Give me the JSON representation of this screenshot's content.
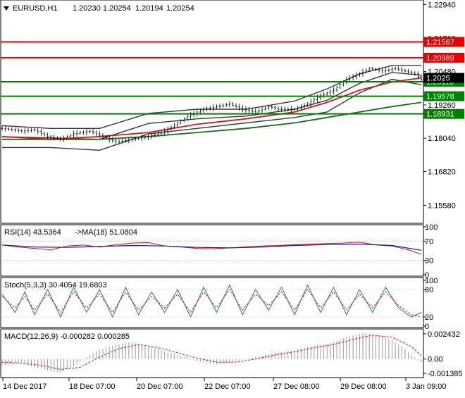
{
  "chart_data": {
    "type": "line",
    "symbol": "EURUSD,H1",
    "ohlc": {
      "open": "1.20230",
      "high": "1.20254",
      "low": "1.20194",
      "close": "1.20254"
    },
    "y_ticks": [
      "1.22940",
      "1.21700",
      "1.20480",
      "1.19260",
      "1.18040",
      "1.16820",
      "1.15580"
    ],
    "ylim": [
      1.15,
      1.23
    ],
    "x_ticks": [
      "14 Dec 2017",
      "18 Dec 07:00",
      "20 Dec 07:00",
      "22 Dec 07:00",
      "27 Dec 08:00",
      "29 Dec 08:00",
      "3 Jan 09:00"
    ],
    "current_price": {
      "value": 1.2025,
      "label": "1.2025"
    },
    "levels": [
      {
        "value": 1.21567,
        "label": "1.21567",
        "color": "#e60000"
      },
      {
        "value": 1.20989,
        "label": "1.20989",
        "color": "#e60000"
      },
      {
        "value": 1.2011,
        "label": "1.20110",
        "color": "#008000"
      },
      {
        "value": 1.19578,
        "label": "1.19578",
        "color": "#008000"
      },
      {
        "value": 1.18931,
        "label": "1.18931",
        "color": "#008000"
      }
    ],
    "price_path": [
      [
        0,
        1.184
      ],
      [
        6,
        1.183
      ],
      [
        10,
        1.1835
      ],
      [
        14,
        1.181
      ],
      [
        18,
        1.18
      ],
      [
        22,
        1.182
      ],
      [
        27,
        1.183
      ],
      [
        31,
        1.181
      ],
      [
        35,
        1.179
      ],
      [
        40,
        1.18
      ],
      [
        45,
        1.181
      ],
      [
        50,
        1.183
      ],
      [
        54,
        1.186
      ],
      [
        58,
        1.189
      ],
      [
        62,
        1.191
      ],
      [
        66,
        1.192
      ],
      [
        70,
        1.193
      ],
      [
        74,
        1.191
      ],
      [
        78,
        1.19
      ],
      [
        82,
        1.192
      ],
      [
        85,
        1.191
      ],
      [
        90,
        1.191
      ],
      [
        94,
        1.193
      ],
      [
        98,
        1.196
      ],
      [
        102,
        1.198
      ],
      [
        106,
        1.202
      ],
      [
        110,
        1.204
      ],
      [
        113,
        1.206
      ],
      [
        117,
        1.205
      ],
      [
        121,
        1.206
      ],
      [
        124,
        1.205
      ],
      [
        127,
        1.204
      ],
      [
        129,
        1.202
      ]
    ],
    "ma_fast": [
      [
        0,
        1.181
      ],
      [
        15,
        1.18
      ],
      [
        30,
        1.181
      ],
      [
        45,
        1.1825
      ],
      [
        60,
        1.1855
      ],
      [
        75,
        1.1875
      ],
      [
        90,
        1.19
      ],
      [
        100,
        1.1935
      ],
      [
        110,
        1.198
      ],
      [
        120,
        1.201
      ],
      [
        129,
        1.2025
      ]
    ],
    "ma_slow": [
      [
        0,
        1.18
      ],
      [
        15,
        1.18
      ],
      [
        30,
        1.18
      ],
      [
        45,
        1.181
      ],
      [
        60,
        1.1825
      ],
      [
        75,
        1.184
      ],
      [
        90,
        1.186
      ],
      [
        100,
        1.188
      ],
      [
        110,
        1.19
      ],
      [
        120,
        1.192
      ],
      [
        129,
        1.1935
      ]
    ],
    "bands": {
      "upper": [
        [
          0,
          1.185
        ],
        [
          15,
          1.184
        ],
        [
          30,
          1.184
        ],
        [
          45,
          1.1895
        ],
        [
          60,
          1.191
        ],
        [
          75,
          1.191
        ],
        [
          90,
          1.194
        ],
        [
          100,
          1.1985
        ],
        [
          110,
          1.204
        ],
        [
          120,
          1.207
        ],
        [
          129,
          1.207
        ]
      ],
      "lower": [
        [
          0,
          1.177
        ],
        [
          15,
          1.177
        ],
        [
          30,
          1.176
        ],
        [
          45,
          1.182
        ],
        [
          60,
          1.184
        ],
        [
          75,
          1.186
        ],
        [
          90,
          1.188
        ],
        [
          100,
          1.19
        ],
        [
          110,
          1.197
        ],
        [
          120,
          1.202
        ],
        [
          129,
          1.2
        ]
      ],
      "mid": [
        [
          0,
          1.181
        ],
        [
          15,
          1.1805
        ],
        [
          30,
          1.18
        ],
        [
          45,
          1.1858
        ],
        [
          60,
          1.1875
        ],
        [
          75,
          1.1885
        ],
        [
          90,
          1.191
        ],
        [
          100,
          1.1943
        ],
        [
          110,
          1.2005
        ],
        [
          120,
          1.2045
        ],
        [
          129,
          1.2035
        ]
      ]
    },
    "indicators": {
      "rsi": {
        "label": "RSI(14) 43.5364",
        "ma_label": "->MA(18) 51.0804",
        "ticks": [
          "100",
          "70",
          "30",
          "0"
        ],
        "ylim": [
          0,
          100
        ],
        "values": [
          [
            0,
            62
          ],
          [
            5,
            58
          ],
          [
            10,
            55
          ],
          [
            15,
            52
          ],
          [
            20,
            60
          ],
          [
            25,
            62
          ],
          [
            30,
            58
          ],
          [
            35,
            63
          ],
          [
            40,
            66
          ],
          [
            45,
            67
          ],
          [
            50,
            60
          ],
          [
            55,
            58
          ],
          [
            60,
            55
          ],
          [
            65,
            54
          ],
          [
            70,
            56
          ],
          [
            75,
            58
          ],
          [
            80,
            60
          ],
          [
            85,
            61
          ],
          [
            90,
            63
          ],
          [
            95,
            64
          ],
          [
            100,
            65
          ],
          [
            105,
            66
          ],
          [
            110,
            68
          ],
          [
            115,
            62
          ],
          [
            120,
            60
          ],
          [
            125,
            52
          ],
          [
            129,
            43
          ]
        ],
        "ma": [
          [
            0,
            62
          ],
          [
            10,
            58
          ],
          [
            20,
            57
          ],
          [
            30,
            59
          ],
          [
            40,
            61
          ],
          [
            50,
            60
          ],
          [
            60,
            57
          ],
          [
            70,
            56
          ],
          [
            80,
            58
          ],
          [
            90,
            61
          ],
          [
            100,
            63
          ],
          [
            110,
            64
          ],
          [
            120,
            61
          ],
          [
            129,
            51
          ]
        ]
      },
      "stoch": {
        "label": "Stoch(5,3,3) 30.4054 19.6803",
        "ticks": [
          "100",
          "80",
          "20",
          "0"
        ],
        "ylim": [
          0,
          100
        ],
        "values": [
          [
            0,
            70
          ],
          [
            4,
            30
          ],
          [
            7,
            75
          ],
          [
            10,
            25
          ],
          [
            14,
            80
          ],
          [
            18,
            20
          ],
          [
            22,
            85
          ],
          [
            26,
            30
          ],
          [
            30,
            80
          ],
          [
            34,
            20
          ],
          [
            38,
            85
          ],
          [
            42,
            25
          ],
          [
            46,
            75
          ],
          [
            50,
            30
          ],
          [
            54,
            80
          ],
          [
            58,
            20
          ],
          [
            62,
            85
          ],
          [
            66,
            30
          ],
          [
            70,
            90
          ],
          [
            74,
            25
          ],
          [
            78,
            80
          ],
          [
            82,
            35
          ],
          [
            86,
            85
          ],
          [
            90,
            25
          ],
          [
            94,
            90
          ],
          [
            98,
            30
          ],
          [
            102,
            85
          ],
          [
            106,
            25
          ],
          [
            110,
            80
          ],
          [
            114,
            30
          ],
          [
            118,
            85
          ],
          [
            122,
            40
          ],
          [
            126,
            20
          ],
          [
            129,
            30
          ]
        ],
        "signal": [
          [
            0,
            65
          ],
          [
            4,
            40
          ],
          [
            7,
            65
          ],
          [
            10,
            35
          ],
          [
            14,
            70
          ],
          [
            18,
            30
          ],
          [
            22,
            75
          ],
          [
            26,
            40
          ],
          [
            30,
            70
          ],
          [
            34,
            30
          ],
          [
            38,
            75
          ],
          [
            42,
            35
          ],
          [
            46,
            65
          ],
          [
            50,
            40
          ],
          [
            54,
            70
          ],
          [
            58,
            30
          ],
          [
            62,
            75
          ],
          [
            66,
            40
          ],
          [
            70,
            80
          ],
          [
            74,
            35
          ],
          [
            78,
            70
          ],
          [
            82,
            45
          ],
          [
            86,
            75
          ],
          [
            90,
            35
          ],
          [
            94,
            80
          ],
          [
            98,
            40
          ],
          [
            102,
            75
          ],
          [
            106,
            35
          ],
          [
            110,
            70
          ],
          [
            114,
            40
          ],
          [
            118,
            75
          ],
          [
            122,
            45
          ],
          [
            126,
            25
          ],
          [
            129,
            20
          ]
        ]
      },
      "macd": {
        "label": "MACD(12,26,9) -0.000282 0.000285",
        "ticks": [
          "0.002432",
          "0.00",
          "-0.001385"
        ],
        "ylim": [
          -0.00165,
          0.0027
        ],
        "histogram": [
          [
            0,
            -0.0006
          ],
          [
            3,
            -0.0005
          ],
          [
            6,
            -0.0004
          ],
          [
            9,
            -0.0007
          ],
          [
            12,
            -0.0009
          ],
          [
            15,
            -0.0012
          ],
          [
            18,
            -0.0013
          ],
          [
            21,
            -0.0009
          ],
          [
            24,
            -0.0003
          ],
          [
            27,
            0.0004
          ],
          [
            30,
            0.0009
          ],
          [
            33,
            0.0012
          ],
          [
            36,
            0.0014
          ],
          [
            39,
            0.0016
          ],
          [
            42,
            0.0015
          ],
          [
            45,
            0.0012
          ],
          [
            48,
            0.001
          ],
          [
            51,
            0.0006
          ],
          [
            54,
            0.0004
          ],
          [
            57,
            0.0002
          ],
          [
            60,
            -0.0002
          ],
          [
            63,
            -0.0004
          ],
          [
            66,
            -0.0005
          ],
          [
            69,
            -0.0004
          ],
          [
            72,
            -0.0002
          ],
          [
            75,
            0.0
          ],
          [
            78,
            0.0002
          ],
          [
            81,
            0.0004
          ],
          [
            84,
            0.0006
          ],
          [
            87,
            0.0007
          ],
          [
            90,
            0.0009
          ],
          [
            93,
            0.0011
          ],
          [
            96,
            0.0013
          ],
          [
            99,
            0.0014
          ],
          [
            102,
            0.0016
          ],
          [
            105,
            0.002
          ],
          [
            108,
            0.0023
          ],
          [
            111,
            0.0025
          ],
          [
            114,
            0.0024
          ],
          [
            117,
            0.0022
          ],
          [
            120,
            0.0018
          ],
          [
            123,
            0.0012
          ],
          [
            126,
            0.0004
          ],
          [
            129,
            -0.0003
          ]
        ],
        "signal": [
          [
            0,
            -0.0003
          ],
          [
            6,
            -0.0004
          ],
          [
            12,
            -0.0006
          ],
          [
            18,
            -0.001
          ],
          [
            24,
            -0.0008
          ],
          [
            30,
            0.0002
          ],
          [
            36,
            0.001
          ],
          [
            42,
            0.0014
          ],
          [
            48,
            0.0011
          ],
          [
            54,
            0.0006
          ],
          [
            60,
            0.0001
          ],
          [
            66,
            -0.0003
          ],
          [
            72,
            -0.0003
          ],
          [
            78,
            0.0
          ],
          [
            84,
            0.0004
          ],
          [
            90,
            0.0007
          ],
          [
            96,
            0.0011
          ],
          [
            102,
            0.0014
          ],
          [
            108,
            0.0019
          ],
          [
            114,
            0.0023
          ],
          [
            120,
            0.0021
          ],
          [
            126,
            0.0012
          ],
          [
            129,
            0.0003
          ]
        ]
      }
    }
  }
}
